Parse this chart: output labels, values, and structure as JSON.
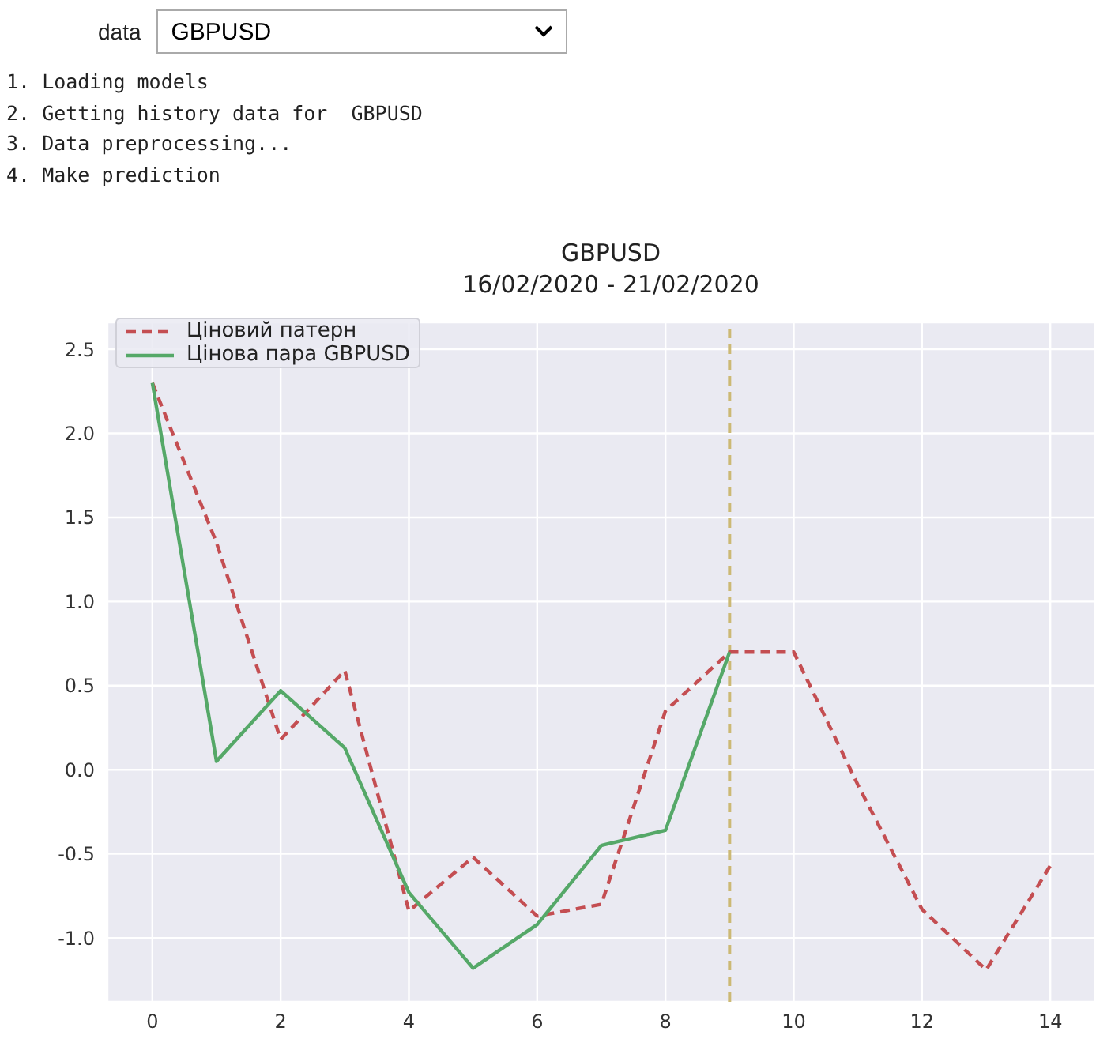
{
  "chart_data": {
    "type": "line",
    "title": "GBPUSD",
    "subtitle": "16/02/2020 - 21/02/2020",
    "annotations": [
      "data",
      "GBPUSD",
      "1. Loading models",
      "2. Getting history data for  GBPUSD",
      "3. Data preprocessing...",
      "4. Make prediction"
    ],
    "x": [
      0,
      1,
      2,
      3,
      4,
      5,
      6,
      7,
      8,
      9,
      10,
      11,
      12,
      13,
      14
    ],
    "series": [
      {
        "name": "Ціновий патерн",
        "color": "#c44e52",
        "line_style": "dashed",
        "values": [
          2.3,
          1.35,
          0.18,
          0.59,
          -0.84,
          -0.52,
          -0.87,
          -0.8,
          0.35,
          0.7,
          0.7,
          -0.09,
          -0.83,
          -1.19,
          -0.57
        ]
      },
      {
        "name": "Цінова пара GBPUSD",
        "color": "#55a868",
        "line_style": "solid",
        "values": [
          2.3,
          0.05,
          0.47,
          0.13,
          -0.73,
          -1.18,
          -0.92,
          -0.45,
          -0.36,
          0.7,
          null,
          null,
          null,
          null,
          null
        ]
      }
    ],
    "ref_lines": [
      {
        "axis": "x",
        "value": 9,
        "color": "#ccb974",
        "line_style": "dashed"
      }
    ],
    "xlim": [
      -0.7,
      14.7
    ],
    "xticks": [
      0,
      2,
      4,
      6,
      8,
      10,
      12,
      14
    ],
    "ylim": [
      -1.38,
      2.66
    ],
    "yticks": [
      {
        "value": -1,
        "label": "-1.0"
      },
      -0.5,
      {
        "value": 0,
        "label": "0.0"
      },
      0.5,
      {
        "value": 1,
        "label": "1.0"
      },
      1.5,
      {
        "value": 2,
        "label": "2.0"
      },
      2.5
    ],
    "grid": true,
    "legend": "top left",
    "marker": "none"
  }
}
